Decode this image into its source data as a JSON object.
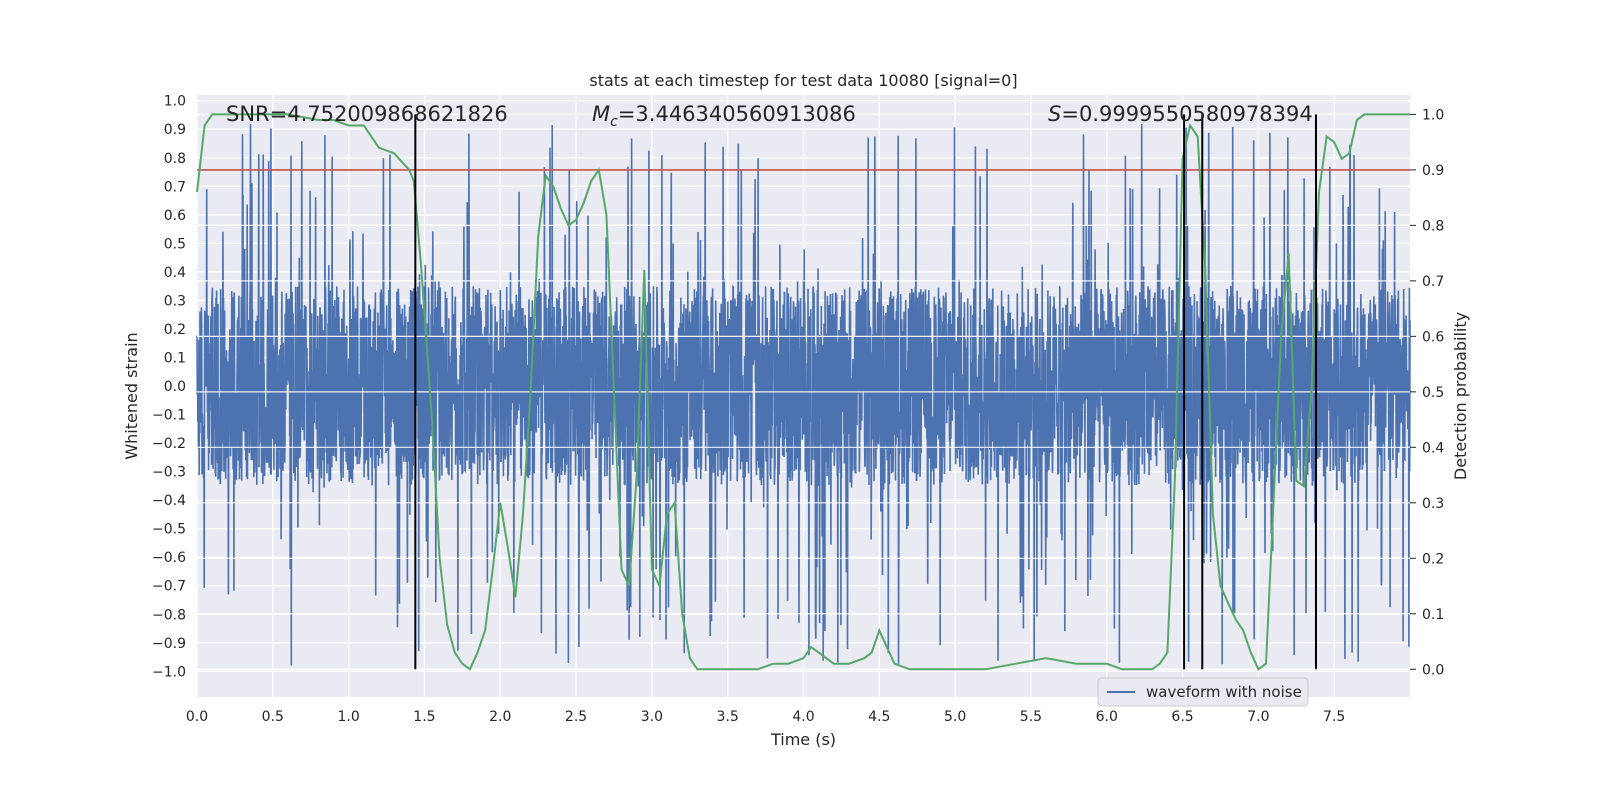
{
  "colors": {
    "background": "#eaeaf2",
    "grid": "#ffffff",
    "waveform": "#4c72b0",
    "probability": "#55a868",
    "threshold": "#c44e52",
    "event_line": "#000000"
  },
  "chart_data": {
    "type": "line",
    "title": "stats at each timestep for test data 10080 [signal=0]",
    "xlabel": "Time (s)",
    "ylabel_left": "Whitened strain",
    "ylabel_right": "Detection probability",
    "xlim": [
      0.0,
      8.0
    ],
    "ylim_left": [
      -1.09,
      1.02
    ],
    "ylim_right": [
      -0.05,
      1.035
    ],
    "x_ticks": [
      "0.0",
      "0.5",
      "1.0",
      "1.5",
      "2.0",
      "2.5",
      "3.0",
      "3.5",
      "4.0",
      "4.5",
      "5.0",
      "5.5",
      "6.0",
      "6.5",
      "7.0",
      "7.5"
    ],
    "x_tick_values": [
      0.0,
      0.5,
      1.0,
      1.5,
      2.0,
      2.5,
      3.0,
      3.5,
      4.0,
      4.5,
      5.0,
      5.5,
      6.0,
      6.5,
      7.0,
      7.5
    ],
    "y_left_ticks": [
      "1.0",
      "0.9",
      "0.8",
      "0.7",
      "0.6",
      "0.5",
      "0.4",
      "0.3",
      "0.2",
      "0.1",
      "0.0",
      "−0.1",
      "−0.2",
      "−0.3",
      "−0.4",
      "−0.5",
      "−0.6",
      "−0.7",
      "−0.8",
      "−0.9",
      "−1.0"
    ],
    "y_left_tick_values": [
      1.0,
      0.9,
      0.8,
      0.7,
      0.6,
      0.5,
      0.4,
      0.3,
      0.2,
      0.1,
      0.0,
      -0.1,
      -0.2,
      -0.3,
      -0.4,
      -0.5,
      -0.6,
      -0.7,
      -0.8,
      -0.9,
      -1.0
    ],
    "y_right_ticks": [
      "1.0",
      "0.9",
      "0.8",
      "0.7",
      "0.6",
      "0.5",
      "0.4",
      "0.3",
      "0.2",
      "0.1",
      "0.0"
    ],
    "y_right_tick_values": [
      1.0,
      0.9,
      0.8,
      0.7,
      0.6,
      0.5,
      0.4,
      0.3,
      0.2,
      0.1,
      0.0
    ],
    "annotations": {
      "snr": "SNR=4.752009868621826",
      "mc_symbol": "M",
      "mc_sub": "c",
      "mc_value": "=3.446340560913086",
      "s_symbol": "S",
      "s_value": "=0.9999550580978394"
    },
    "legend": {
      "label": "waveform with noise",
      "position": "lower-right"
    },
    "series": [
      {
        "name": "waveform with noise",
        "axis": "left",
        "description": "dense noisy strain, band roughly -0.35..0.35 with spikes to about +/-0.9",
        "band": [
          -0.35,
          0.35
        ],
        "spike_range": [
          -0.98,
          0.92
        ]
      },
      {
        "name": "detection probability",
        "axis": "right",
        "x": [
          0.0,
          0.05,
          0.1,
          0.2,
          0.4,
          0.6,
          0.8,
          0.9,
          1.0,
          1.1,
          1.2,
          1.3,
          1.4,
          1.43,
          1.48,
          1.55,
          1.6,
          1.65,
          1.7,
          1.75,
          1.8,
          1.85,
          1.9,
          1.95,
          2.0,
          2.05,
          2.1,
          2.15,
          2.2,
          2.25,
          2.3,
          2.35,
          2.4,
          2.45,
          2.5,
          2.55,
          2.6,
          2.65,
          2.7,
          2.75,
          2.8,
          2.85,
          2.9,
          2.95,
          3.0,
          3.05,
          3.1,
          3.15,
          3.2,
          3.25,
          3.3,
          3.4,
          3.5,
          3.6,
          3.7,
          3.8,
          3.9,
          4.0,
          4.05,
          4.1,
          4.2,
          4.3,
          4.4,
          4.45,
          4.5,
          4.55,
          4.6,
          4.7,
          4.8,
          5.0,
          5.2,
          5.4,
          5.6,
          5.8,
          6.0,
          6.1,
          6.2,
          6.3,
          6.35,
          6.4,
          6.45,
          6.5,
          6.55,
          6.6,
          6.65,
          6.7,
          6.75,
          6.8,
          6.85,
          6.9,
          6.95,
          7.0,
          7.05,
          7.1,
          7.15,
          7.2,
          7.25,
          7.3,
          7.35,
          7.4,
          7.45,
          7.5,
          7.55,
          7.6,
          7.65,
          7.7,
          7.75,
          7.8,
          7.9,
          8.0
        ],
        "values": [
          0.86,
          0.98,
          1.0,
          1.0,
          1.0,
          1.0,
          0.99,
          0.99,
          0.98,
          0.98,
          0.94,
          0.93,
          0.9,
          0.88,
          0.72,
          0.45,
          0.2,
          0.08,
          0.03,
          0.01,
          0.0,
          0.03,
          0.07,
          0.18,
          0.3,
          0.22,
          0.13,
          0.28,
          0.5,
          0.78,
          0.89,
          0.87,
          0.83,
          0.8,
          0.81,
          0.84,
          0.88,
          0.9,
          0.82,
          0.5,
          0.18,
          0.15,
          0.35,
          0.72,
          0.18,
          0.15,
          0.28,
          0.3,
          0.1,
          0.02,
          0.0,
          0.0,
          0.0,
          0.0,
          0.0,
          0.01,
          0.01,
          0.02,
          0.04,
          0.03,
          0.01,
          0.01,
          0.02,
          0.03,
          0.07,
          0.04,
          0.01,
          0.0,
          0.0,
          0.0,
          0.0,
          0.01,
          0.02,
          0.01,
          0.01,
          0.0,
          0.0,
          0.0,
          0.01,
          0.03,
          0.35,
          0.92,
          0.98,
          0.96,
          0.72,
          0.28,
          0.15,
          0.12,
          0.09,
          0.07,
          0.03,
          0.0,
          0.01,
          0.3,
          0.6,
          0.75,
          0.34,
          0.33,
          0.5,
          0.86,
          0.96,
          0.95,
          0.92,
          0.93,
          0.99,
          1.0,
          1.0,
          1.0,
          1.0,
          1.0
        ]
      }
    ],
    "threshold": {
      "axis": "right",
      "value": 0.9
    },
    "event_lines": [
      1.44,
      6.51,
      6.63,
      7.38
    ],
    "event_line_range_right": [
      0.0,
      1.0
    ]
  }
}
